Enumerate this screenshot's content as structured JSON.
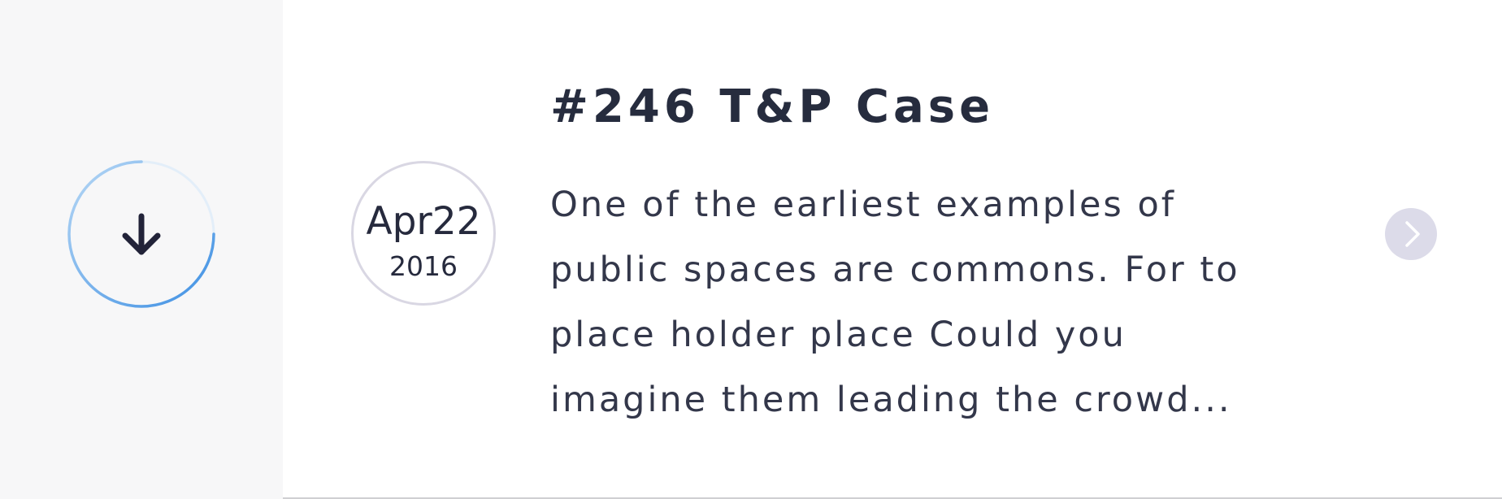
{
  "download": {
    "icon": "arrow-down-icon",
    "progress": 0.25
  },
  "date": {
    "day": "Apr22",
    "year": "2016"
  },
  "post": {
    "title": "#246 T&P Case",
    "description_lines": [
      "One of the earliest examples of",
      "public spaces are commons. For to",
      "place holder place Could you",
      "imagine them leading the crowd..."
    ]
  },
  "next": {
    "icon": "chevron-right-icon"
  },
  "colors": {
    "left_panel_bg": "#f7f7f8",
    "ring_light": "#c9e1f7",
    "ring_accent": "#3d8fe3",
    "text_dark": "#262c3e",
    "badge_border": "#d9d7e3",
    "next_bg": "#dcdbe9"
  }
}
